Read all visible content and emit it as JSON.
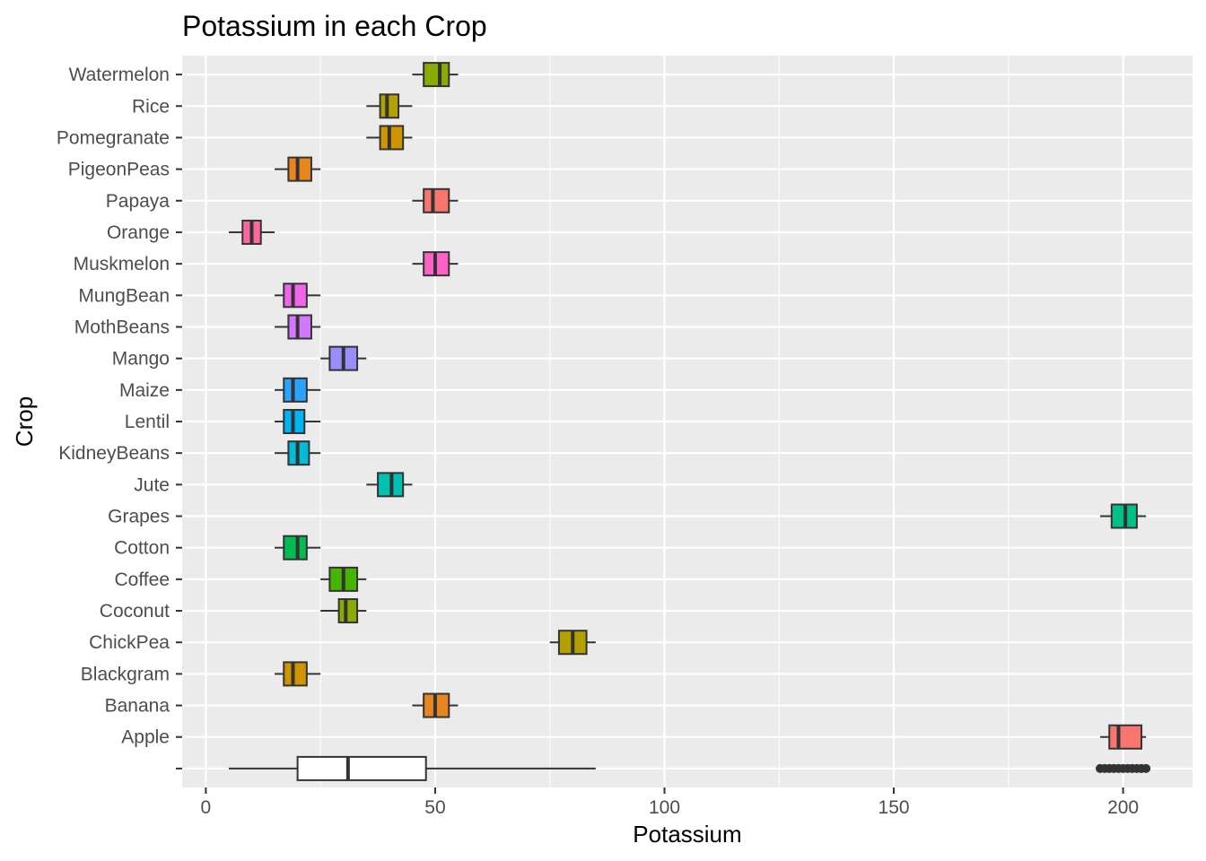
{
  "chart_data": {
    "type": "boxplot",
    "orientation": "horizontal",
    "title": "Potassium in each Crop",
    "xlabel": "Potassium",
    "ylabel": "Crop",
    "xlim": [
      -5,
      213
    ],
    "xticks": [
      0,
      50,
      100,
      150,
      200
    ],
    "grid": true,
    "legend": "none",
    "categories": [
      "Apple",
      "Banana",
      "Blackgram",
      "ChickPea",
      "Coconut",
      "Coffee",
      "Cotton",
      "Grapes",
      "Jute",
      "KidneyBeans",
      "Lentil",
      "Maize",
      "Mango",
      "MothBeans",
      "MungBean",
      "Muskmelon",
      "Orange",
      "Papaya",
      "PigeonPeas",
      "Pomegranate",
      "Rice",
      "Watermelon"
    ],
    "boxes": [
      {
        "crop": "Apple",
        "min": 195,
        "q1": 197,
        "median": 199,
        "q3": 204,
        "max": 205,
        "color": "#F8766D"
      },
      {
        "crop": "Banana",
        "min": 45,
        "q1": 47.5,
        "median": 50,
        "q3": 53,
        "max": 55,
        "color": "#E7851E"
      },
      {
        "crop": "Blackgram",
        "min": 15,
        "q1": 17,
        "median": 19,
        "q3": 22,
        "max": 25,
        "color": "#D09400"
      },
      {
        "crop": "ChickPea",
        "min": 75,
        "q1": 77,
        "median": 80,
        "q3": 83,
        "max": 85,
        "color": "#B2A100"
      },
      {
        "crop": "Coconut",
        "min": 25,
        "q1": 29,
        "median": 30.5,
        "q3": 33,
        "max": 35,
        "color": "#89AC00"
      },
      {
        "crop": "Coffee",
        "min": 25,
        "q1": 27,
        "median": 30,
        "q3": 33,
        "max": 35,
        "color": "#45B500"
      },
      {
        "crop": "Cotton",
        "min": 15,
        "q1": 17,
        "median": 20,
        "q3": 22,
        "max": 25,
        "color": "#00BC51"
      },
      {
        "crop": "Grapes",
        "min": 195,
        "q1": 197.5,
        "median": 200.5,
        "q3": 203,
        "max": 205,
        "color": "#00C087"
      },
      {
        "crop": "Jute",
        "min": 35,
        "q1": 37.5,
        "median": 40.5,
        "q3": 43,
        "max": 45,
        "color": "#00C0B2"
      },
      {
        "crop": "KidneyBeans",
        "min": 15,
        "q1": 18,
        "median": 20,
        "q3": 22.5,
        "max": 25,
        "color": "#00BCD6"
      },
      {
        "crop": "Lentil",
        "min": 15,
        "q1": 17,
        "median": 19,
        "q3": 21.5,
        "max": 25,
        "color": "#00B3F2"
      },
      {
        "crop": "Maize",
        "min": 15,
        "q1": 17,
        "median": 19,
        "q3": 22,
        "max": 25,
        "color": "#29A3FF"
      },
      {
        "crop": "Mango",
        "min": 25,
        "q1": 27,
        "median": 30,
        "q3": 33,
        "max": 35,
        "color": "#9C8DFF"
      },
      {
        "crop": "MothBeans",
        "min": 15,
        "q1": 18,
        "median": 20,
        "q3": 23,
        "max": 25,
        "color": "#D277FF"
      },
      {
        "crop": "MungBean",
        "min": 15,
        "q1": 17,
        "median": 19,
        "q3": 22,
        "max": 25,
        "color": "#F166E8"
      },
      {
        "crop": "Muskmelon",
        "min": 45,
        "q1": 47.5,
        "median": 50,
        "q3": 53,
        "max": 55,
        "color": "#FF61C7"
      },
      {
        "crop": "Orange",
        "min": 5,
        "q1": 8,
        "median": 10,
        "q3": 12,
        "max": 15,
        "color": "#FF689E"
      },
      {
        "crop": "Papaya",
        "min": 45,
        "q1": 47.5,
        "median": 49.5,
        "q3": 53,
        "max": 55,
        "color": "#F8766D"
      },
      {
        "crop": "PigeonPeas",
        "min": 15,
        "q1": 18,
        "median": 20,
        "q3": 23,
        "max": 25,
        "color": "#E7851E"
      },
      {
        "crop": "Pomegranate",
        "min": 35,
        "q1": 38,
        "median": 40,
        "q3": 43,
        "max": 45,
        "color": "#D09400"
      },
      {
        "crop": "Rice",
        "min": 35,
        "q1": 38,
        "median": 39.5,
        "q3": 42,
        "max": 45,
        "color": "#B2A100"
      },
      {
        "crop": "Watermelon",
        "min": 45,
        "q1": 47.5,
        "median": 51,
        "q3": 53,
        "max": 55,
        "color": "#89AC00"
      }
    ],
    "overall": {
      "min": 5,
      "q1": 20,
      "median": 31,
      "q3": 48,
      "max": 85,
      "outliers": [
        195,
        196,
        197,
        198,
        199,
        200,
        201,
        202,
        203,
        204,
        205
      ],
      "color": "#FFFFFF"
    }
  }
}
